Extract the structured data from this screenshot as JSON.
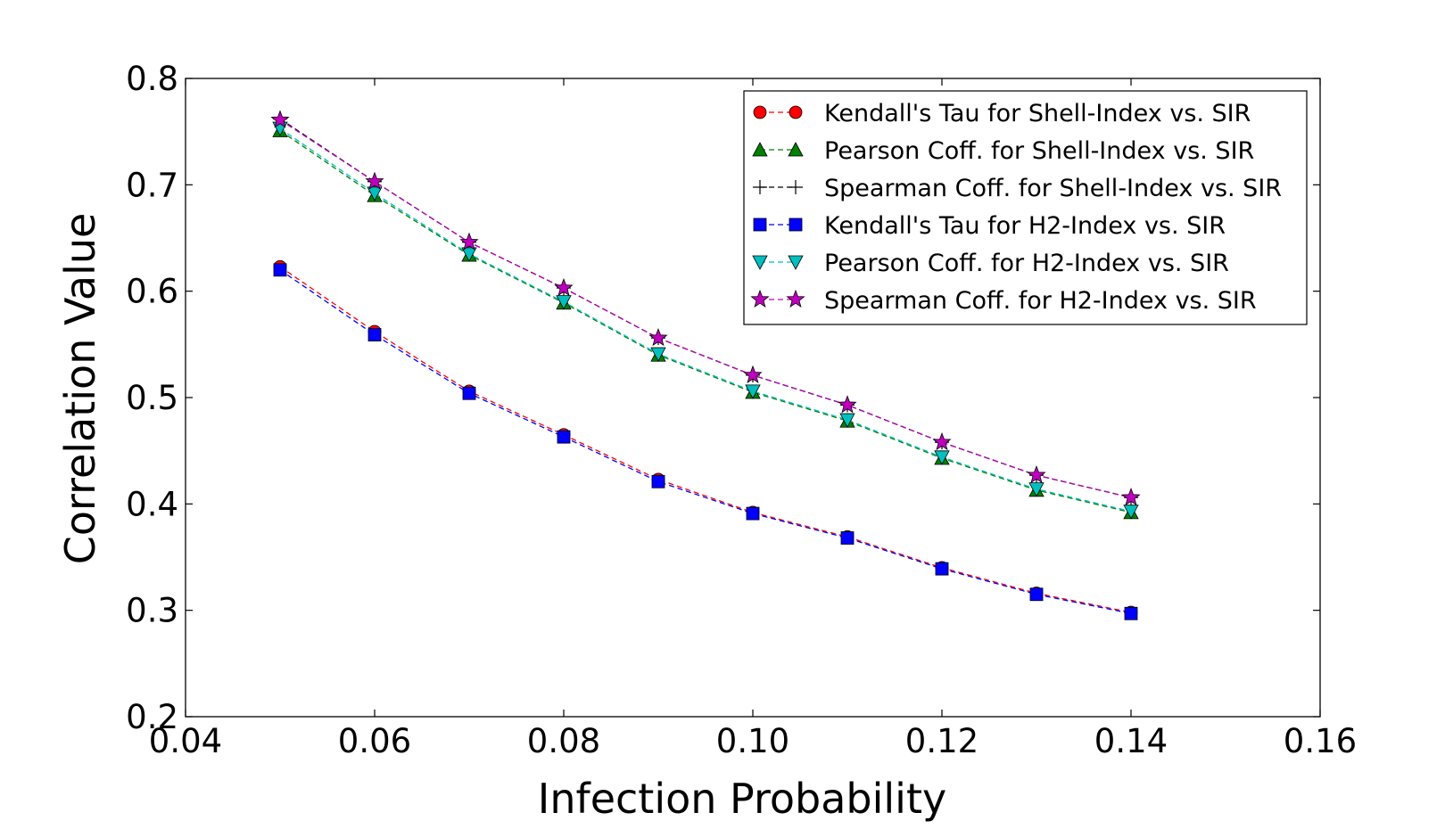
{
  "chart_data": {
    "type": "line",
    "title": "",
    "xlabel": "Infection Probability",
    "ylabel": "Correlation Value",
    "xlim": [
      0.04,
      0.16
    ],
    "ylim": [
      0.2,
      0.8
    ],
    "xticks": [
      "0.04",
      "0.06",
      "0.08",
      "0.10",
      "0.12",
      "0.14",
      "0.16"
    ],
    "yticks": [
      "0.2",
      "0.3",
      "0.4",
      "0.5",
      "0.6",
      "0.7",
      "0.8"
    ],
    "grid": false,
    "legend_position": "top-right",
    "x": [
      0.05,
      0.06,
      0.07,
      0.08,
      0.09,
      0.1,
      0.11,
      0.12,
      0.13,
      0.14
    ],
    "series": [
      {
        "name": "Kendall's Tau for Shell-Index vs. SIR",
        "marker": "circle",
        "color": "#ff0000",
        "values": [
          0.623,
          0.562,
          0.506,
          0.465,
          0.423,
          0.392,
          0.369,
          0.34,
          0.316,
          0.298
        ]
      },
      {
        "name": "Pearson Coff. for Shell-Index vs. SIR",
        "marker": "triangle-up",
        "color": "#008000",
        "values": [
          0.751,
          0.69,
          0.634,
          0.589,
          0.54,
          0.505,
          0.478,
          0.443,
          0.413,
          0.392
        ]
      },
      {
        "name": "Spearman Coff. for Shell-Index vs. SIR",
        "marker": "plus",
        "color": "#000000",
        "values": [
          0.762,
          0.703,
          0.646,
          0.603,
          0.556,
          0.521,
          0.493,
          0.458,
          0.427,
          0.406
        ]
      },
      {
        "name": "Kendall's Tau for H2-Index vs. SIR",
        "marker": "square",
        "color": "#0000ff",
        "values": [
          0.62,
          0.559,
          0.504,
          0.463,
          0.421,
          0.391,
          0.368,
          0.339,
          0.315,
          0.297
        ]
      },
      {
        "name": "Pearson Coff. for H2-Index vs. SIR",
        "marker": "triangle-down",
        "color": "#00bfbf",
        "values": [
          0.753,
          0.692,
          0.635,
          0.59,
          0.541,
          0.506,
          0.479,
          0.444,
          0.414,
          0.393
        ]
      },
      {
        "name": "Spearman Coff. for H2-Index vs. SIR",
        "marker": "star",
        "color": "#bf00bf",
        "values": [
          0.761,
          0.703,
          0.646,
          0.603,
          0.556,
          0.521,
          0.493,
          0.458,
          0.427,
          0.406
        ]
      }
    ]
  }
}
